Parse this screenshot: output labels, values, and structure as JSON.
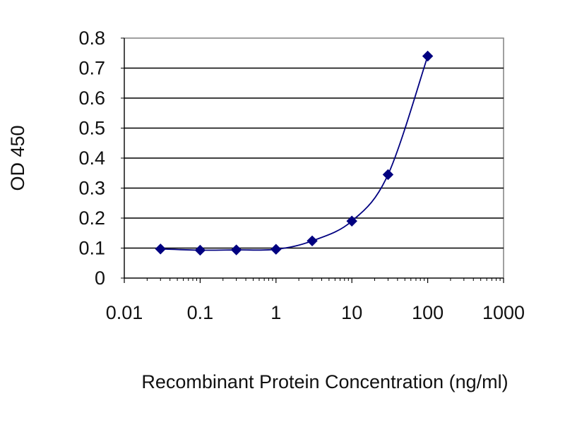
{
  "chart_data": {
    "type": "line",
    "title": "",
    "xlabel": "Recombinant Protein Concentration (ng/ml)",
    "ylabel": "OD 450",
    "xscale": "log",
    "xlim": [
      0.01,
      1000
    ],
    "ylim": [
      0,
      0.8
    ],
    "x_ticks": [
      0.01,
      0.1,
      1,
      10,
      100,
      1000
    ],
    "x_tick_labels": [
      "0.01",
      "0.1",
      "1",
      "10",
      "100",
      "1000"
    ],
    "y_ticks": [
      0,
      0.1,
      0.2,
      0.3,
      0.4,
      0.5,
      0.6,
      0.7,
      0.8
    ],
    "y_tick_labels": [
      "0",
      "0.1",
      "0.2",
      "0.3",
      "0.4",
      "0.5",
      "0.6",
      "0.7",
      "0.8"
    ],
    "grid": "horizontal",
    "legend": "none",
    "series": [
      {
        "x": [
          0.03,
          0.1,
          0.3,
          1,
          3,
          10,
          30,
          100
        ],
        "y": [
          0.097,
          0.093,
          0.094,
          0.096,
          0.124,
          0.19,
          0.345,
          0.74
        ],
        "color": "#000080",
        "marker": "diamond"
      }
    ]
  }
}
